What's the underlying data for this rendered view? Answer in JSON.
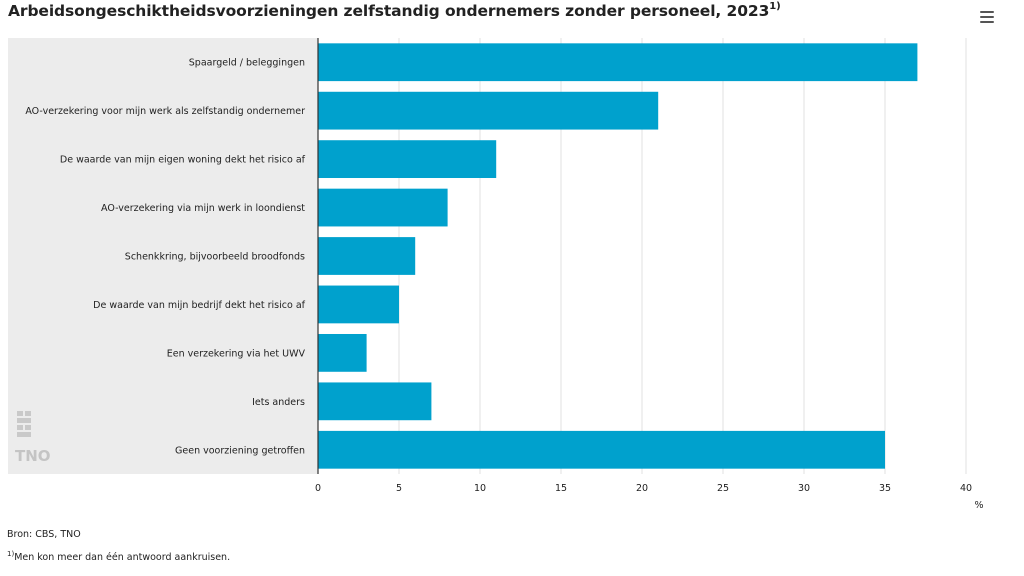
{
  "title": "Arbeidsongeschiktheidsvoorzieningen zelfstandig ondernemers zonder personeel, 2023",
  "title_footnote_marker": "1)",
  "menu": {
    "icon": "hamburger-menu-icon"
  },
  "logo": {
    "text": "TNO",
    "icon": "cbs-logo-icon"
  },
  "chart_data": {
    "type": "bar",
    "orientation": "horizontal",
    "categories": [
      "Spaargeld / beleggingen",
      "AO-verzekering voor mijn werk als zelfstandig ondernemer",
      "De waarde van mijn eigen woning dekt het risico af",
      "AO-verzekering via mijn werk in loondienst",
      "Schenkkring, bijvoorbeeld broodfonds",
      "De waarde van mijn bedrijf dekt het risico af",
      "Een verzekering via het UWV",
      "Iets anders",
      "Geen voorziening getroffen"
    ],
    "values": [
      37,
      21,
      11,
      8,
      6,
      5,
      3,
      7,
      35
    ],
    "xlim": [
      0,
      40
    ],
    "xticks": [
      "0",
      "5",
      "10",
      "15",
      "20",
      "25",
      "30",
      "35",
      "40"
    ],
    "xlabel": "%",
    "grid": true,
    "bar_color": "#00a1cd",
    "panel_color": "#ececec"
  },
  "footer": {
    "source": "Bron: CBS, TNO",
    "footnote_marker": "1)",
    "footnote": "Men kon meer dan één antwoord aankruisen."
  }
}
